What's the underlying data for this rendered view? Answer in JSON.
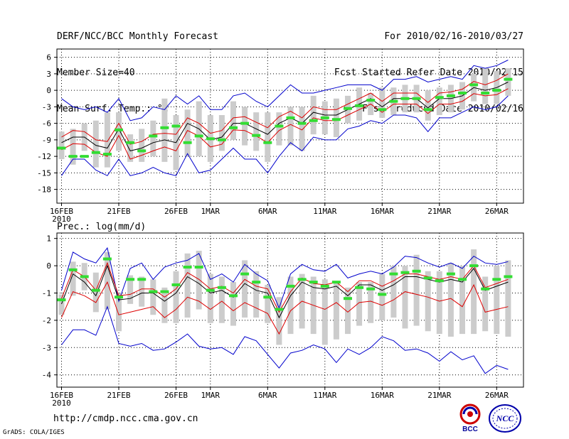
{
  "header": {
    "title": "DERF/NCC/BCC Monthly Forecast",
    "member_size": "Member Size=40",
    "variable": "Mean Surf. Temp.: °C",
    "period": "For 2010/02/16-2010/03/27",
    "fcst_started": "Fcst Started Refer Date 2010/02/15",
    "fcst_produced": "Fcst Produced Date 2010/02/16"
  },
  "footer": {
    "url": "http://cmdp.ncc.cma.gov.cn",
    "grads": "GrADS: COLA/IGES"
  },
  "logos": {
    "bcc": "BCC",
    "ncc": "NCC"
  },
  "colors": {
    "ensemble_mean": "#000000",
    "spread": "#dd0000",
    "extremes": "#0000cc",
    "box": "#cccccc",
    "climatology": "#33dd33",
    "grid": "#000000"
  },
  "chart_data": [
    {
      "type": "line",
      "title": "Mean Surf. Temp.: °C",
      "ylabel": "Mean Surf. Temp.: °C",
      "ylim": [
        -20.5,
        7.5
      ],
      "yticks": [
        6,
        3,
        0,
        -3,
        -6,
        -9,
        -12,
        -15,
        -18
      ],
      "xticks": [
        {
          "day": 0,
          "label": "16FEB",
          "sublabel": "2010"
        },
        {
          "day": 5,
          "label": "21FEB"
        },
        {
          "day": 10,
          "label": "26FEB"
        },
        {
          "day": 13,
          "label": "1MAR"
        },
        {
          "day": 18,
          "label": "6MAR"
        },
        {
          "day": 23,
          "label": "11MAR"
        },
        {
          "day": 28,
          "label": "16MAR"
        },
        {
          "day": 33,
          "label": "21MAR"
        },
        {
          "day": 38,
          "label": "26MAR"
        }
      ],
      "days": [
        0,
        1,
        2,
        3,
        4,
        5,
        6,
        7,
        8,
        9,
        10,
        11,
        12,
        13,
        14,
        15,
        16,
        17,
        18,
        19,
        20,
        21,
        22,
        23,
        24,
        25,
        26,
        27,
        28,
        29,
        30,
        31,
        32,
        33,
        34,
        35,
        36,
        37,
        38,
        39
      ],
      "series": [
        {
          "name": "ensemble mean",
          "color": "#000000",
          "values": [
            -9.5,
            -8.5,
            -8.5,
            -10,
            -10.5,
            -7,
            -11,
            -10.5,
            -9.5,
            -9,
            -9.5,
            -6,
            -7,
            -9,
            -8.5,
            -6,
            -6,
            -7,
            -8,
            -6,
            -5,
            -6,
            -4,
            -4.5,
            -4.5,
            -3.5,
            -2.5,
            -1.5,
            -3,
            -1.5,
            -1.5,
            -1.5,
            -3.2,
            -1.5,
            -1.5,
            -1,
            0.5,
            0,
            0.5,
            1.5
          ]
        },
        {
          "name": "mean + 1 sd",
          "color": "#dd0000",
          "values": [
            -8.5,
            -7.3,
            -7.5,
            -9,
            -9.3,
            -6,
            -9.8,
            -9.3,
            -8,
            -7.8,
            -8,
            -5,
            -6,
            -7.8,
            -7.3,
            -5,
            -4.8,
            -5.8,
            -6.8,
            -4.8,
            -3.8,
            -5,
            -3,
            -3.5,
            -3.5,
            -2.5,
            -1.5,
            -0.5,
            -2,
            -0.5,
            -0.5,
            -0.5,
            -2.2,
            -0.5,
            -0.3,
            0.2,
            1.6,
            1,
            1.8,
            3
          ]
        },
        {
          "name": "mean - 1 sd",
          "color": "#dd0000",
          "values": [
            -10.8,
            -9.7,
            -9.8,
            -11.3,
            -12,
            -8.2,
            -12.5,
            -11.8,
            -11,
            -10.3,
            -11,
            -7.3,
            -8.3,
            -10.3,
            -9.8,
            -7.2,
            -7.3,
            -8.3,
            -9.5,
            -7.3,
            -6.2,
            -7.2,
            -5,
            -5.5,
            -5.5,
            -4.5,
            -3.5,
            -2.5,
            -4,
            -2.5,
            -2.5,
            -2.5,
            -4.2,
            -2.5,
            -2.5,
            -2,
            -0.6,
            -1,
            -0.8,
            0.3
          ]
        },
        {
          "name": "ensemble max",
          "color": "#0000cc",
          "values": [
            -1.5,
            -3,
            -3.5,
            -3,
            -4,
            -1.5,
            -5.5,
            -5,
            -3,
            -3.5,
            -1,
            -2.5,
            -1,
            -3.5,
            -3.5,
            -1,
            -0.5,
            -2,
            -3,
            -1,
            1,
            -0.5,
            -0.5,
            0,
            0.5,
            1,
            1,
            1,
            0,
            2,
            2,
            2.5,
            1.5,
            2,
            2.5,
            2,
            4.5,
            4,
            4.5,
            5.5
          ]
        },
        {
          "name": "ensemble min",
          "color": "#0000cc",
          "values": [
            -15.5,
            -12.5,
            -12.5,
            -14.5,
            -15.5,
            -12.5,
            -15.5,
            -15,
            -14,
            -15,
            -15.5,
            -11.5,
            -15,
            -14.5,
            -12.5,
            -10.5,
            -12.5,
            -12.5,
            -15,
            -12,
            -9.5,
            -11,
            -8.5,
            -9,
            -9,
            -7,
            -6.5,
            -5.5,
            -6,
            -4.5,
            -4.5,
            -5,
            -7.5,
            -5,
            -5,
            -4,
            -3,
            -3.5,
            -3,
            -1
          ]
        }
      ],
      "boxes": [
        {
          "low": -12.5,
          "high": -7.5
        },
        {
          "low": -13.5,
          "high": -7
        },
        {
          "low": -11,
          "high": -6
        },
        {
          "low": -14,
          "high": -5.5
        },
        {
          "low": -14,
          "high": -4
        },
        {
          "low": -11,
          "high": -4
        },
        {
          "low": -13,
          "high": -8
        },
        {
          "low": -13,
          "high": -7
        },
        {
          "low": -12,
          "high": -5.5
        },
        {
          "low": -13,
          "high": -1.5
        },
        {
          "low": -14.5,
          "high": -4.5
        },
        {
          "low": -12,
          "high": -3.5
        },
        {
          "low": -12,
          "high": -2
        },
        {
          "low": -13,
          "high": -4.5
        },
        {
          "low": -11,
          "high": -4.5
        },
        {
          "low": -9,
          "high": -2
        },
        {
          "low": -10,
          "high": -3
        },
        {
          "low": -11,
          "high": -4
        },
        {
          "low": -13,
          "high": -4
        },
        {
          "low": -10,
          "high": -4
        },
        {
          "low": -10,
          "high": -3
        },
        {
          "low": -11,
          "high": -3
        },
        {
          "low": -8,
          "high": -1
        },
        {
          "low": -8,
          "high": -2
        },
        {
          "low": -8.5,
          "high": -1.5
        },
        {
          "low": -6,
          "high": -1
        },
        {
          "low": -5.5,
          "high": 0.5
        },
        {
          "low": -4.5,
          "high": -0.5
        },
        {
          "low": -5,
          "high": 0.5
        },
        {
          "low": -4.5,
          "high": 0.5
        },
        {
          "low": -4,
          "high": 1
        },
        {
          "low": -4,
          "high": 1
        },
        {
          "low": -5.5,
          "high": 0
        },
        {
          "low": -4.5,
          "high": 0.5
        },
        {
          "low": -4,
          "high": 1
        },
        {
          "low": -3.5,
          "high": 1.5
        },
        {
          "low": -2,
          "high": 3
        },
        {
          "low": -2.5,
          "high": 4
        },
        {
          "low": -2.5,
          "high": 3.5
        },
        {
          "low": -1,
          "high": 4
        }
      ],
      "climatology": [
        -10.5,
        -12,
        -12,
        -11.3,
        -11.6,
        -7.2,
        -9.5,
        -11,
        -8.3,
        -6.8,
        -6.5,
        -9.5,
        -8.3,
        -8.8,
        -9,
        -6.8,
        -6,
        -8.2,
        -9.5,
        -6.5,
        -5,
        -6,
        -5.5,
        -5,
        -5.3,
        -3.3,
        -2.8,
        -1.8,
        -3.5,
        -2,
        -1.5,
        -1.5,
        -3.5,
        -1.3,
        -1,
        -0.5,
        1,
        -0.5,
        0,
        2
      ]
    },
    {
      "type": "line",
      "title": "Prec.: log(mm/d)",
      "ylabel": "Prec.: log(mm/d)",
      "ylim": [
        -4.45,
        1.2
      ],
      "yticks": [
        1,
        0,
        -1,
        -2,
        -3,
        -4
      ],
      "xticks": [
        {
          "day": 0,
          "label": "16FEB",
          "sublabel": "2010"
        },
        {
          "day": 5,
          "label": "21FEB"
        },
        {
          "day": 10,
          "label": "26FEB"
        },
        {
          "day": 13,
          "label": "1MAR"
        },
        {
          "day": 18,
          "label": "6MAR"
        },
        {
          "day": 23,
          "label": "11MAR"
        },
        {
          "day": 28,
          "label": "16MAR"
        },
        {
          "day": 33,
          "label": "21MAR"
        },
        {
          "day": 38,
          "label": "26MAR"
        }
      ],
      "days": [
        0,
        1,
        2,
        3,
        4,
        5,
        6,
        7,
        8,
        9,
        10,
        11,
        12,
        13,
        14,
        15,
        16,
        17,
        18,
        19,
        20,
        21,
        22,
        23,
        24,
        25,
        26,
        27,
        28,
        29,
        30,
        31,
        32,
        33,
        34,
        35,
        36,
        37,
        38,
        39
      ],
      "series": [
        {
          "name": "ensemble mean",
          "color": "#000000",
          "values": [
            -1.4,
            -0.3,
            -0.6,
            -1.1,
            0,
            -1.25,
            -1.2,
            -1,
            -1,
            -1.3,
            -1,
            -0.4,
            -0.65,
            -1,
            -0.9,
            -1.15,
            -0.65,
            -0.9,
            -1,
            -1.9,
            -1.1,
            -0.6,
            -0.8,
            -0.85,
            -0.75,
            -1.1,
            -0.7,
            -0.7,
            -0.9,
            -0.7,
            -0.4,
            -0.4,
            -0.5,
            -0.6,
            -0.5,
            -0.6,
            -0.1,
            -0.9,
            -0.75,
            -0.6
          ]
        },
        {
          "name": "mean + 1 sd",
          "color": "#dd0000",
          "values": [
            -1.2,
            -0.15,
            -0.4,
            -0.9,
            0.1,
            -1.1,
            -1.05,
            -0.85,
            -0.85,
            -1.15,
            -0.85,
            -0.25,
            -0.5,
            -0.85,
            -0.75,
            -1,
            -0.5,
            -0.75,
            -0.85,
            -1.7,
            -0.95,
            -0.45,
            -0.65,
            -0.7,
            -0.6,
            -0.95,
            -0.55,
            -0.55,
            -0.75,
            -0.55,
            -0.3,
            -0.3,
            -0.4,
            -0.5,
            -0.4,
            -0.5,
            0,
            -0.8,
            -0.65,
            -0.5
          ]
        },
        {
          "name": "mean - 1 sd",
          "color": "#dd0000",
          "values": [
            -1.9,
            -0.95,
            -1.1,
            -1.35,
            -0.6,
            -1.8,
            -1.7,
            -1.6,
            -1.5,
            -1.9,
            -1.6,
            -1.15,
            -1.3,
            -1.6,
            -1.3,
            -1.65,
            -1.35,
            -1.55,
            -1.75,
            -2.5,
            -1.65,
            -1.3,
            -1.45,
            -1.6,
            -1.35,
            -1.7,
            -1.35,
            -1.3,
            -1.45,
            -1.25,
            -0.95,
            -1.05,
            -1.15,
            -1.3,
            -1.2,
            -1.5,
            -0.7,
            -1.7,
            -1.6,
            -1.5
          ]
        },
        {
          "name": "ensemble max",
          "color": "#0000cc",
          "values": [
            -0.9,
            0.5,
            0.25,
            0.1,
            0.65,
            -1.3,
            -0.1,
            0.1,
            -0.5,
            -0.05,
            0.1,
            0.2,
            0.45,
            -0.5,
            -0.3,
            -0.6,
            0.05,
            -0.3,
            -0.55,
            -1.55,
            -0.3,
            0.05,
            -0.15,
            -0.2,
            0.05,
            -0.45,
            -0.3,
            -0.2,
            -0.3,
            -0.05,
            0.35,
            0.3,
            0.1,
            -0.05,
            0.1,
            -0.1,
            0.35,
            0.1,
            0.05,
            0.15
          ]
        },
        {
          "name": "ensemble min",
          "color": "#0000cc",
          "values": [
            -2.9,
            -2.35,
            -2.35,
            -2.55,
            -1.5,
            -2.85,
            -2.95,
            -2.85,
            -3.1,
            -3.05,
            -2.8,
            -2.5,
            -2.95,
            -3.05,
            -3,
            -3.25,
            -2.6,
            -2.75,
            -3.25,
            -3.75,
            -3.2,
            -3.1,
            -2.9,
            -3.05,
            -3.55,
            -3.05,
            -3.25,
            -3,
            -2.6,
            -2.75,
            -3.1,
            -3.05,
            -3.2,
            -3.5,
            -3.15,
            -3.45,
            -3.3,
            -3.95,
            -3.65,
            -3.8
          ]
        }
      ],
      "boxes": [
        {
          "low": -1.8,
          "high": -1.05
        },
        {
          "low": -1.1,
          "high": 0.15
        },
        {
          "low": -0.9,
          "high": 0.1
        },
        {
          "low": -1.7,
          "high": -0.25
        },
        {
          "low": -1.6,
          "high": 0.5
        },
        {
          "low": -2.4,
          "high": -1
        },
        {
          "low": -1.4,
          "high": -0.35
        },
        {
          "low": -1.5,
          "high": -0.4
        },
        {
          "low": -1.8,
          "high": -0.5
        },
        {
          "low": -2.1,
          "high": -0.8
        },
        {
          "low": -2.1,
          "high": -0.2
        },
        {
          "low": -1.9,
          "high": 0.45
        },
        {
          "low": -1.6,
          "high": 0.55
        },
        {
          "low": -2.1,
          "high": -0.3
        },
        {
          "low": -2.1,
          "high": -0.4
        },
        {
          "low": -2.2,
          "high": -0.6
        },
        {
          "low": -1.9,
          "high": 0.2
        },
        {
          "low": -1.9,
          "high": -0.2
        },
        {
          "low": -2.1,
          "high": -0.7
        },
        {
          "low": -2.9,
          "high": -1.15
        },
        {
          "low": -2.5,
          "high": -0.4
        },
        {
          "low": -2.3,
          "high": -0.3
        },
        {
          "low": -2.5,
          "high": -0.4
        },
        {
          "low": -2.9,
          "high": -0.5
        },
        {
          "low": -2.7,
          "high": -0.6
        },
        {
          "low": -2.5,
          "high": -0.8
        },
        {
          "low": -2.2,
          "high": -0.6
        },
        {
          "low": -2.1,
          "high": -0.6
        },
        {
          "low": -2,
          "high": -0.3
        },
        {
          "low": -1.9,
          "high": 0
        },
        {
          "low": -2.3,
          "high": 0
        },
        {
          "low": -2.2,
          "high": 0.4
        },
        {
          "low": -2.4,
          "high": -0.2
        },
        {
          "low": -2.5,
          "high": -0.2
        },
        {
          "low": -2.6,
          "high": 0.1
        },
        {
          "low": -2.5,
          "high": 0
        },
        {
          "low": -2.5,
          "high": 0.6
        },
        {
          "low": -2.4,
          "high": -0.4
        },
        {
          "low": -2.5,
          "high": 0
        },
        {
          "low": -2.6,
          "high": 0.2
        }
      ],
      "climatology": [
        -1.25,
        -0.15,
        -0.4,
        -0.9,
        0.25,
        -1.15,
        -0.5,
        -0.5,
        -0.95,
        -0.95,
        -0.7,
        -0.05,
        -0.05,
        -0.9,
        -0.8,
        -1.1,
        -0.3,
        -0.6,
        -1.15,
        -1.6,
        -0.75,
        -0.5,
        -0.6,
        -0.75,
        -0.6,
        -1.2,
        -0.8,
        -0.85,
        -1.05,
        -0.3,
        -0.25,
        -0.2,
        -0.45,
        -0.55,
        -0.3,
        -0.5,
        0,
        -0.85,
        -0.5,
        -0.4
      ]
    }
  ]
}
